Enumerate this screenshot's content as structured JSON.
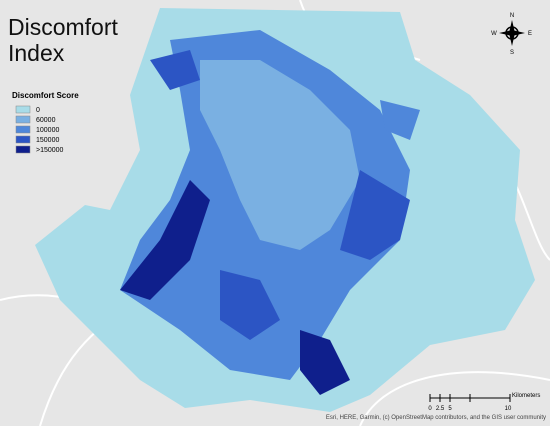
{
  "title": "Discomfort Index",
  "legend": {
    "title": "Discomfort Score",
    "items": [
      {
        "label": "0",
        "color": "#a8dce8"
      },
      {
        "label": "60000",
        "color": "#7ab0e2"
      },
      {
        "label": "100000",
        "color": "#4f87da"
      },
      {
        "label": "150000",
        "color": "#2c55c4"
      },
      {
        "label": ">150000",
        "color": "#0f1f8c"
      }
    ]
  },
  "compass": {
    "n": "N",
    "e": "E",
    "s": "S",
    "w": "W"
  },
  "scale": {
    "unit": "Kilometers",
    "ticks": [
      "0",
      "2.5",
      "5",
      "10"
    ]
  },
  "attribution": "Esri, HERE, Garmin, (c) OpenStreetMap contributors, and the GIS user community"
}
